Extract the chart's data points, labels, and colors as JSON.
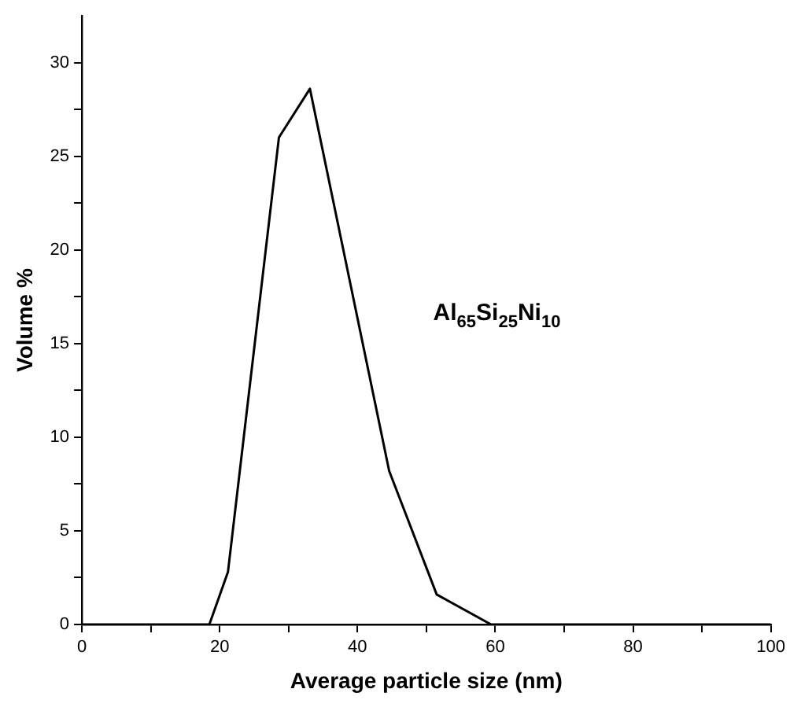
{
  "chart_data": {
    "type": "line",
    "xlabel": "Average particle size (nm)",
    "ylabel": "Volume %",
    "annotations": [
      "Al$_{65}$Si$_{25}$Ni$_{10}$"
    ],
    "x": [
      0,
      18.5,
      21.2,
      28.6,
      33.1,
      44.6,
      51.5,
      59.4,
      100
    ],
    "series": [
      {
        "color": "#000000",
        "values": [
          0,
          0,
          2.8,
          26.0,
          28.6,
          8.2,
          1.6,
          0,
          0
        ]
      }
    ],
    "xlim": [
      0,
      100
    ],
    "ylim": [
      0,
      32.5
    ],
    "xticks": [
      0,
      {
        "value": 10,
        "label": null
      },
      20,
      {
        "value": 30,
        "label": null
      },
      40,
      {
        "value": 50,
        "label": null
      },
      60,
      {
        "value": 70,
        "label": null
      },
      80,
      {
        "value": 90,
        "label": null
      },
      100
    ],
    "yticks": [
      0,
      {
        "value": 2.5,
        "label": null
      },
      5,
      {
        "value": 7.5,
        "label": null
      },
      10,
      {
        "value": 12.5,
        "label": null
      },
      15,
      {
        "value": 17.5,
        "label": null
      },
      20,
      {
        "value": 22.5,
        "label": null
      },
      25,
      {
        "value": 27.5,
        "label": null
      },
      30
    ],
    "grid": false,
    "legend": false,
    "marker": "none",
    "line_style": "solid"
  }
}
